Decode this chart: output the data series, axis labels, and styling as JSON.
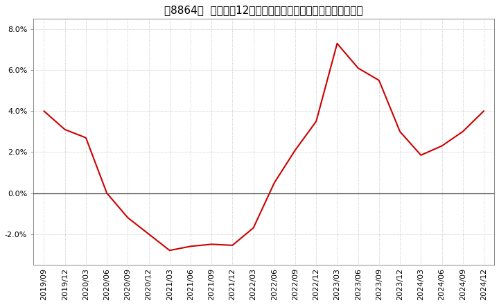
{
  "title": "［8864］  売上高の12か月移動合計の対前年同期増減率の推移",
  "line_color": "#cc0000",
  "background_color": "#ffffff",
  "plot_bg_color": "#ffffff",
  "grid_color": "#aaaaaa",
  "x_labels": [
    "2019/09",
    "2019/12",
    "2020/03",
    "2020/06",
    "2020/09",
    "2020/12",
    "2021/03",
    "2021/06",
    "2021/09",
    "2021/12",
    "2022/03",
    "2022/06",
    "2022/09",
    "2022/12",
    "2023/03",
    "2023/06",
    "2023/09",
    "2023/12",
    "2024/03",
    "2024/06",
    "2024/09",
    "2024/12"
  ],
  "y_values": [
    4.0,
    3.1,
    2.7,
    0.0,
    -1.2,
    -2.0,
    -2.8,
    -2.6,
    -2.5,
    -2.55,
    -1.7,
    0.5,
    2.1,
    3.5,
    7.3,
    6.1,
    5.5,
    3.0,
    1.85,
    2.3,
    3.0,
    4.0
  ],
  "ylim": [
    -3.5,
    8.5
  ],
  "yticks": [
    -2.0,
    0.0,
    2.0,
    4.0,
    6.0,
    8.0
  ],
  "ytick_labels": [
    "-2.0%",
    "0.0%",
    "2.0%",
    "4.0%",
    "6.0%",
    "8.0%"
  ],
  "title_fontsize": 11,
  "tick_fontsize": 8,
  "line_width": 1.5
}
